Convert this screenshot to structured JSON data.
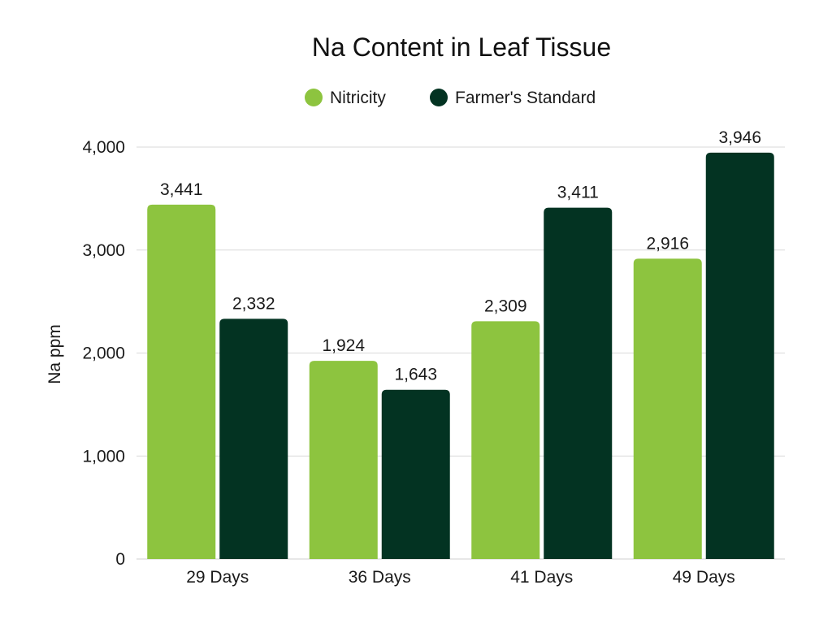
{
  "chart_data": {
    "type": "bar",
    "title": "Na Content in Leaf Tissue",
    "xlabel": "",
    "ylabel": "Na ppm",
    "ylim": [
      0,
      4000
    ],
    "yticks": [
      0,
      1000,
      2000,
      3000,
      4000
    ],
    "ytick_labels": [
      "0",
      "1,000",
      "2,000",
      "3,000",
      "4,000"
    ],
    "grid": true,
    "legend_position": "top-center",
    "categories": [
      "29 Days",
      "36 Days",
      "41 Days",
      "49 Days"
    ],
    "series": [
      {
        "name": "Nitricity",
        "color": "#8dc43f",
        "values": [
          3441,
          1924,
          2309,
          2916
        ],
        "labels": [
          "3,441",
          "1,924",
          "2,309",
          "2,916"
        ]
      },
      {
        "name": "Farmer's Standard",
        "color": "#033322",
        "values": [
          2332,
          1643,
          3411,
          3946
        ],
        "labels": [
          "2,332",
          "1,643",
          "3,411",
          "3,946"
        ]
      }
    ]
  }
}
